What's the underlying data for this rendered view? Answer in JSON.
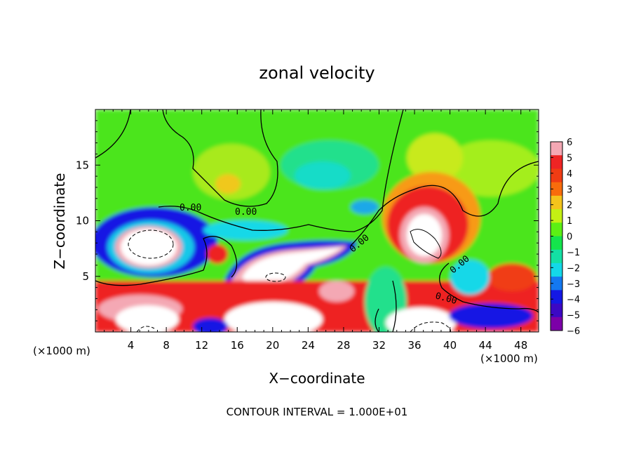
{
  "chart_data": {
    "type": "heatmap",
    "title": "zonal velocity",
    "xlabel": "X−coordinate",
    "ylabel": "Z−coordinate",
    "x_unit_left": "(×1000 m)",
    "x_unit_right": "(×1000 m)",
    "footer": "CONTOUR INTERVAL = 1.000E+01",
    "xlim": [
      0,
      50
    ],
    "ylim": [
      0,
      20
    ],
    "x_ticks": [
      4,
      8,
      12,
      16,
      20,
      24,
      28,
      32,
      36,
      40,
      44,
      48
    ],
    "y_ticks": [
      5,
      10,
      15
    ],
    "colorbar": {
      "min": -6,
      "max": 6,
      "labels": [
        "6",
        "5",
        "4",
        "3",
        "2",
        "1",
        "0",
        "−1",
        "−2",
        "−3",
        "−4",
        "−5",
        "−6"
      ],
      "colors": [
        "#f4a8b4",
        "#ee2424",
        "#f03c14",
        "#f86c0c",
        "#f4c41c",
        "#c4f014",
        "#5cf014",
        "#14e44c",
        "#14e0a4",
        "#14d8e8",
        "#1478f0",
        "#1418e4",
        "#3c08c4",
        "#7c00a8"
      ]
    },
    "contour_labels": [
      "0.00",
      "0.00",
      "0.00",
      "0.00",
      "0.00"
    ],
    "features": [
      {
        "x": 6,
        "z": 8,
        "value": -12
      },
      {
        "x": 18,
        "z": 5.5,
        "value": -11
      },
      {
        "x": 25,
        "z": 6.5,
        "value": -10
      },
      {
        "x": 37,
        "z": 8.5,
        "value": 12
      },
      {
        "x": 18.5,
        "z": 1,
        "value": 12
      },
      {
        "x": 6,
        "z": 1.5,
        "value": 9
      },
      {
        "x": 38,
        "z": 0.8,
        "value": -10
      },
      {
        "x": 14,
        "z": 7.5,
        "value": 4
      },
      {
        "x": 18,
        "z": 14,
        "value": 2
      },
      {
        "x": 39,
        "z": 12,
        "value": 4
      },
      {
        "x": 26,
        "z": 13,
        "value": -1.5
      },
      {
        "x": 6,
        "z": 10,
        "value": -5
      },
      {
        "x": 46,
        "z": 5,
        "value": 3
      }
    ]
  }
}
